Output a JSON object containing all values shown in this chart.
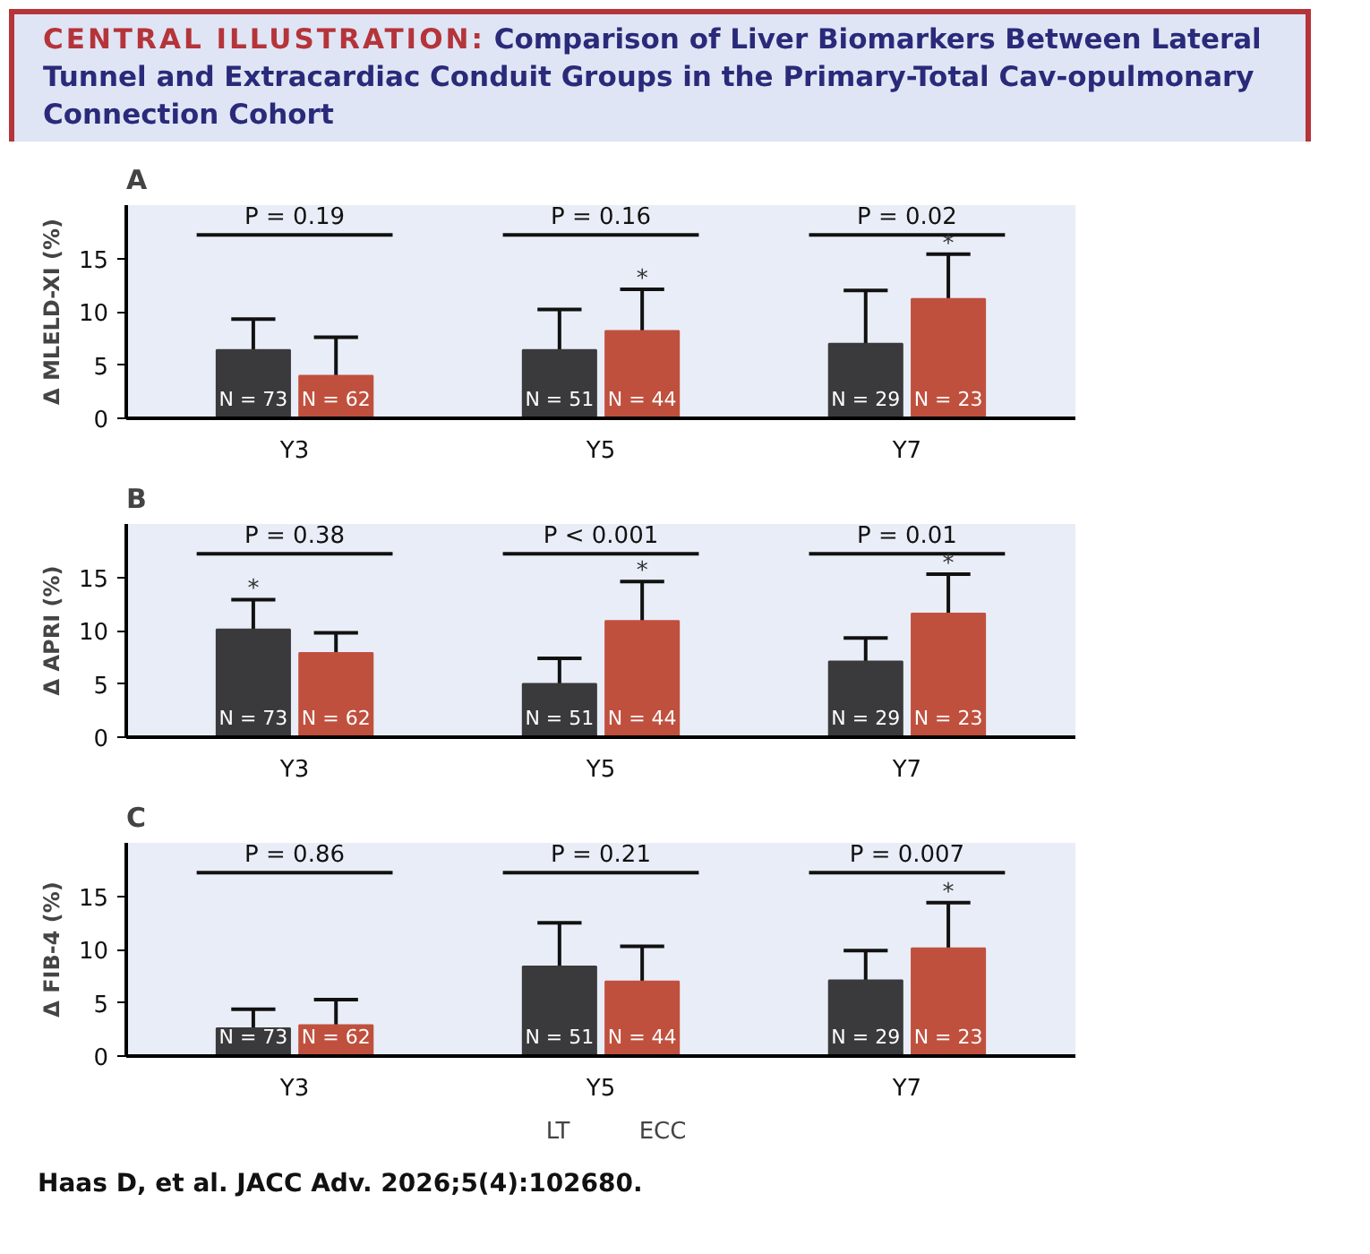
{
  "chart_data": [
    {
      "type": "bar",
      "title": "CENTRAL ILLUSTRATION:",
      "subtitle": "Comparison of Liver Biomarkers Between Lateral Tunnel and Extracardiac Conduit Groups in the Primary-Total Cav-opulmonary Connection Cohort",
      "ylabel": "Δ MLELD-XI (%)",
      "categories": [
        "Y3",
        "Y5",
        "Y7"
      ],
      "ylim": [
        0,
        20
      ],
      "yticks": [
        0,
        5,
        10,
        15
      ],
      "grid": false,
      "legend": false,
      "series": [
        {
          "color": "#3a3a3c",
          "values": [
            6.4,
            6.4,
            7.0
          ],
          "errors": [
            [
              6.4,
              9.3
            ],
            [
              6.4,
              10.2
            ],
            [
              7.0,
              12.0
            ]
          ]
        },
        {
          "color": "#c0503e",
          "values": [
            4.0,
            8.2,
            11.2
          ],
          "errors": [
            [
              4.0,
              7.6
            ],
            [
              8.2,
              12.1
            ],
            [
              11.2,
              15.4
            ]
          ]
        }
      ],
      "annotations": [
        "A",
        "P = 0.19",
        "P = 0.16",
        "P = 0.02",
        "N = 73",
        "N = 51",
        "N = 29",
        "N = 62",
        "N = 44",
        "N = 23",
        {
          "text": "*",
          "x": "Y5",
          "y": 8.2
        },
        {
          "text": "*",
          "x": "Y7",
          "y": 11.2
        }
      ]
    },
    {
      "type": "bar",
      "ylabel": "Δ APRI (%)",
      "categories": [
        "Y3",
        "Y5",
        "Y7"
      ],
      "ylim": [
        0,
        20
      ],
      "yticks": [
        0,
        5,
        10,
        15
      ],
      "grid": false,
      "legend": false,
      "series": [
        {
          "color": "#3a3a3c",
          "values": [
            10.1,
            5.0,
            7.1
          ],
          "errors": [
            [
              10.1,
              12.9
            ],
            [
              5.0,
              7.4
            ],
            [
              7.1,
              9.3
            ]
          ]
        },
        {
          "color": "#c0503e",
          "values": [
            7.9,
            10.9,
            11.6
          ],
          "errors": [
            [
              7.9,
              9.8
            ],
            [
              10.9,
              14.6
            ],
            [
              11.6,
              15.3
            ]
          ]
        }
      ],
      "annotations": [
        "B",
        "P = 0.38",
        "P < 0.001",
        "P = 0.01",
        "N = 73",
        "N = 51",
        "N = 29",
        "N = 62",
        "N = 44",
        "N = 23",
        {
          "text": "*",
          "x": "Y3",
          "y": 10.1
        },
        {
          "text": "*",
          "x": "Y5",
          "y": 10.9
        },
        {
          "text": "*",
          "x": "Y7",
          "y": 11.6
        }
      ]
    },
    {
      "type": "bar",
      "ylabel": "Δ FIB-4 (%)",
      "categories": [
        "Y3",
        "Y5",
        "Y7"
      ],
      "ylim": [
        0,
        20
      ],
      "yticks": [
        0,
        5,
        10,
        15
      ],
      "grid": false,
      "legend": "bottom",
      "series": [
        {
          "name": "LT",
          "color": "#3a3a3c",
          "values": [
            2.6,
            8.4,
            7.1
          ],
          "errors": [
            [
              2.6,
              4.4
            ],
            [
              8.4,
              12.5
            ],
            [
              7.1,
              9.9
            ]
          ]
        },
        {
          "name": "ECC",
          "color": "#c0503e",
          "values": [
            2.9,
            7.0,
            10.1
          ],
          "errors": [
            [
              2.9,
              5.3
            ],
            [
              7.0,
              10.3
            ],
            [
              10.1,
              14.4
            ]
          ]
        }
      ],
      "annotations": [
        "C",
        "P = 0.86",
        "P = 0.21",
        "P = 0.007",
        "N = 73",
        "N = 51",
        "N = 29",
        "N = 62",
        "N = 44",
        "N = 23",
        {
          "text": "*",
          "x": "Y7",
          "y": 10.1
        },
        "Haas D, et al. JACC Adv. 2026;5(4):102680."
      ]
    }
  ]
}
